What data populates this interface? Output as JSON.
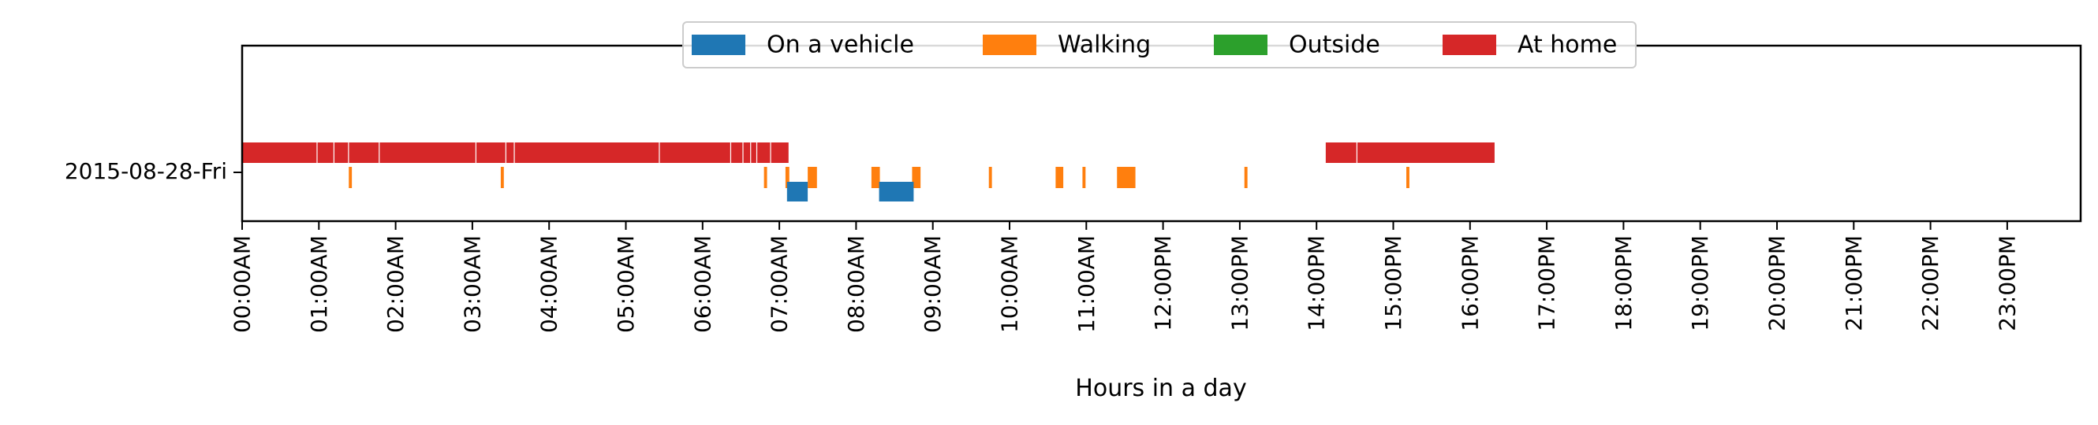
{
  "chart_data": {
    "type": "timeline",
    "xlabel": "Hours in a day",
    "xlim": [
      0,
      24
    ],
    "row_labels": [
      "2015-08-28-Fri"
    ],
    "x_tick_labels": [
      "00:00AM",
      "01:00AM",
      "02:00AM",
      "03:00AM",
      "04:00AM",
      "05:00AM",
      "06:00AM",
      "07:00AM",
      "08:00AM",
      "09:00AM",
      "10:00AM",
      "11:00AM",
      "12:00PM",
      "13:00PM",
      "14:00PM",
      "15:00PM",
      "16:00PM",
      "17:00PM",
      "18:00PM",
      "19:00PM",
      "20:00PM",
      "21:00PM",
      "22:00PM",
      "23:00PM"
    ],
    "legend_position": "top-center",
    "series": [
      {
        "name": "On a vehicle",
        "color": "#1f77b4",
        "intervals": [
          [
            7.1,
            7.37
          ],
          [
            8.3,
            8.75
          ]
        ]
      },
      {
        "name": "Walking",
        "color": "#ff7f0e",
        "intervals": [
          [
            1.39,
            1.43
          ],
          [
            3.37,
            3.41
          ],
          [
            6.8,
            6.84
          ],
          [
            7.08,
            7.13
          ],
          [
            7.37,
            7.49
          ],
          [
            8.2,
            8.31
          ],
          [
            8.73,
            8.84
          ],
          [
            9.73,
            9.77
          ],
          [
            10.6,
            10.7
          ],
          [
            10.95,
            10.99
          ],
          [
            11.4,
            11.64
          ],
          [
            13.06,
            13.1
          ],
          [
            15.17,
            15.21
          ]
        ]
      },
      {
        "name": "Outside",
        "color": "#2ca02c",
        "intervals": []
      },
      {
        "name": "At home",
        "color": "#d62728",
        "intervals": [
          [
            0.0,
            7.12
          ],
          [
            14.12,
            16.32
          ]
        ]
      }
    ]
  }
}
